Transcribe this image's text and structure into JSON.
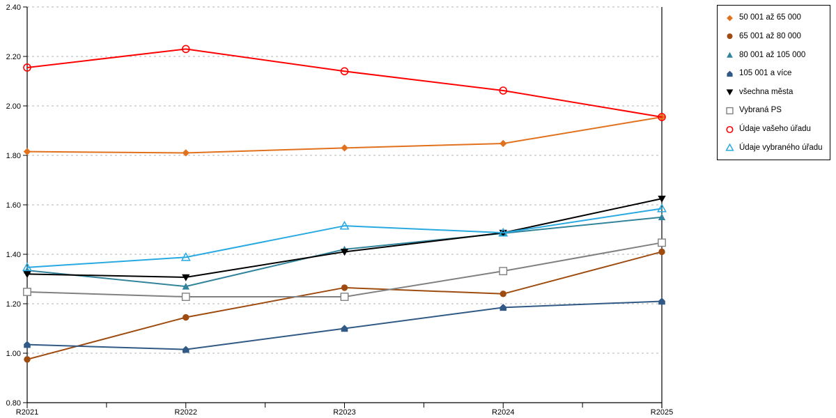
{
  "page": {
    "background": "#ffffff",
    "axis_color": "#000000",
    "gridline_color": "#b3b3b3",
    "legend_border_color": "#000000"
  },
  "chart_data": {
    "type": "line",
    "title": "",
    "xlabel": "",
    "ylabel": "",
    "categories": [
      "R2021",
      "R2022",
      "R2023",
      "R2024",
      "R2025"
    ],
    "ylim": [
      0.8,
      2.4
    ],
    "ytick_step": 0.2,
    "ytick_labels": [
      "0.80",
      "1.00",
      "1.20",
      "1.40",
      "1.60",
      "1.80",
      "2.00",
      "2.20",
      "2.40"
    ],
    "grid": "horizontal-dashed",
    "legend_position": "top-right-outside",
    "series": [
      {
        "name": "50 001 až 65 000",
        "color": "#E1711D",
        "marker": "diamond",
        "values": [
          1.815,
          1.81,
          1.83,
          1.848,
          1.955
        ]
      },
      {
        "name": "65 001 až 80 000",
        "color": "#9E4B10",
        "marker": "circle",
        "values": [
          0.975,
          1.145,
          1.265,
          1.24,
          1.41
        ]
      },
      {
        "name": "80 001 až 105 000",
        "color": "#31849B",
        "marker": "triangle",
        "values": [
          1.335,
          1.27,
          1.42,
          1.485,
          1.55
        ]
      },
      {
        "name": "105 001 a více",
        "color": "#305A85",
        "marker": "house",
        "values": [
          1.035,
          1.015,
          1.1,
          1.185,
          1.21
        ]
      },
      {
        "name": "všechna města",
        "color": "#000000",
        "marker": "triangle-down",
        "values": [
          1.32,
          1.307,
          1.41,
          1.487,
          1.625
        ]
      },
      {
        "name": "Vybraná PS",
        "color": "#808080",
        "marker": "square-open",
        "values": [
          1.248,
          1.228,
          1.228,
          1.332,
          1.447
        ]
      },
      {
        "name": "Údaje vašeho úřadu",
        "color": "#FF0000",
        "marker": "circle-open",
        "values": [
          2.155,
          2.23,
          2.14,
          2.062,
          1.955
        ]
      },
      {
        "name": "Údaje vybraného úřadu",
        "color": "#29A9E1",
        "marker": "triangle-open",
        "values": [
          1.347,
          1.388,
          1.515,
          1.487,
          1.585
        ]
      }
    ]
  }
}
